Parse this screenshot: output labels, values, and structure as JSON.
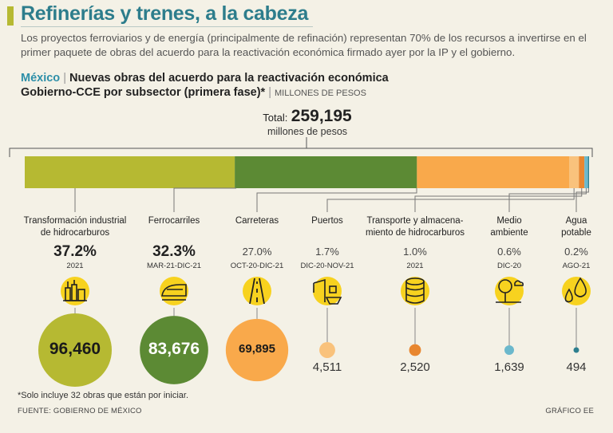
{
  "header": {
    "headline": "Refinerías y trenes, a la cabeza",
    "subtitle": "Los proyectos ferroviarios y de energía (principalmente de refinación) representan 70% de los recursos a invertirse en el primer paquete de obras del acuerdo para la reactivación económica firmado ayer por la IP y el gobierno.",
    "country": "México",
    "title_line1": "Nuevas obras del acuerdo para la reactivación económica",
    "title_line2": "Gobierno-CCE por subsector (primera fase)*",
    "units": "MILLONES DE PESOS"
  },
  "total": {
    "label": "Total:",
    "value": "259,195",
    "units": "millones de pesos"
  },
  "chart_data": {
    "type": "bar",
    "title": "Nuevas obras del acuerdo para la reactivación económica Gobierno-CCE por subsector (primera fase)",
    "units": "millones de pesos",
    "total": 259195,
    "categories": [
      "Transformación industrial de hidrocarburos",
      "Ferrocarriles",
      "Carreteras",
      "Puertos",
      "Transporte y almacenamiento de hidrocarburos",
      "Medio ambiente",
      "Agua potable"
    ],
    "values": [
      96460,
      83676,
      69895,
      4511,
      2520,
      1639,
      494
    ],
    "value_labels": [
      "96,460",
      "83,676",
      "69,895",
      "4,511",
      "2,520",
      "1,639",
      "494"
    ],
    "shares": [
      "37.2%",
      "32.3%",
      "27.0%",
      "1.7%",
      "1.0%",
      "0.6%",
      "0.2%"
    ],
    "periods": [
      "2021",
      "MAR-21-DIC-21",
      "OCT-20-DIC-21",
      "DIC-20-NOV-21",
      "2021",
      "DIC-20",
      "AGO-21"
    ],
    "label_lines": [
      [
        "Transformación industrial",
        "de hidrocarburos"
      ],
      [
        "Ferrocarriles"
      ],
      [
        "Carreteras"
      ],
      [
        "Puertos"
      ],
      [
        "Transporte y almacena-",
        "miento de hidrocarburos"
      ],
      [
        "Medio",
        "ambiente"
      ],
      [
        "Agua",
        "potable"
      ]
    ],
    "colors": [
      "#b6b932",
      "#5c8a34",
      "#f9a94b",
      "#f9c27c",
      "#e8862f",
      "#6bb8cc",
      "#2d7f8f"
    ],
    "icons": [
      "refinery-icon",
      "train-icon",
      "highway-icon",
      "port-crane-icon",
      "storage-tank-icon",
      "tree-icon",
      "water-drops-icon"
    ]
  },
  "footer": {
    "footnote": "*Solo incluye 32 obras que están por iniciar.",
    "source": "FUENTE: GOBIERNO DE MÉXICO",
    "credit": "GRÁFICO EE"
  }
}
